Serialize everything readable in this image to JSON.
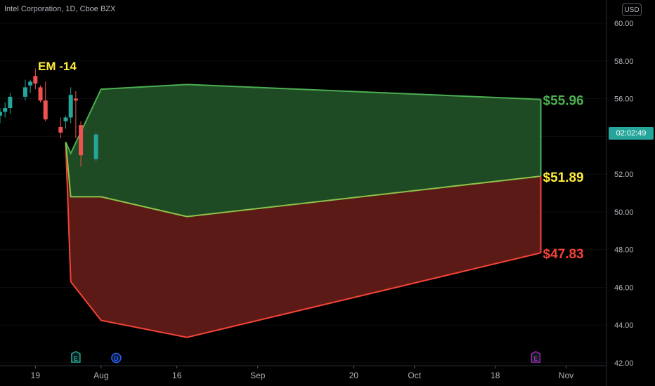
{
  "header": {
    "symbol": "Intel Corporation, 1D, Cboe BZX",
    "currency": "USD"
  },
  "countdown": "02:02:49",
  "annotation": "EM -14",
  "colors": {
    "upper": "#4caf50",
    "mid": "#8bc34a",
    "lower": "#f44336",
    "label_upper": "#4caf50",
    "label_mid": "#ffeb3b",
    "label_lower": "#f44336",
    "candle_up": "#26a69a",
    "candle_down": "#ef5350"
  },
  "event_markers": [
    {
      "letter": "E",
      "date": "2023-07-27",
      "color": "#26a69a"
    },
    {
      "letter": "D",
      "date": "2023-08-04",
      "color": "#2962ff"
    },
    {
      "letter": "E",
      "date": "2023-10-26",
      "color": "#9c27b0"
    }
  ],
  "chart_data": {
    "type": "area",
    "title": "",
    "xlabel": "",
    "ylabel": "",
    "x_ticks": [
      {
        "label": "19",
        "date": "2023-07-19"
      },
      {
        "label": "Aug",
        "date": "2023-08-01"
      },
      {
        "label": "16",
        "date": "2023-08-16"
      },
      {
        "label": "Sep",
        "date": "2023-09-01"
      },
      {
        "label": "20",
        "date": "2023-09-20"
      },
      {
        "label": "Oct",
        "date": "2023-10-02"
      },
      {
        "label": "18",
        "date": "2023-10-18"
      },
      {
        "label": "Nov",
        "date": "2023-11-01"
      }
    ],
    "y_ticks": [
      "60.00",
      "58.00",
      "56.00",
      "54.00",
      "52.00",
      "50.00",
      "48.00",
      "46.00",
      "44.00",
      "42.00"
    ],
    "ylim": [
      42,
      60
    ],
    "xlim": [
      "2023-07-12",
      "2023-11-09"
    ],
    "upper_band": {
      "x": [
        "2023-07-25",
        "2023-07-26",
        "2023-08-01",
        "2023-08-18",
        "2023-10-27"
      ],
      "y": [
        53.7,
        53.1,
        56.5,
        56.75,
        55.96
      ]
    },
    "mid_band": {
      "x": [
        "2023-07-25",
        "2023-07-26",
        "2023-08-01",
        "2023-08-18",
        "2023-10-27"
      ],
      "y": [
        53.7,
        50.8,
        50.8,
        49.75,
        51.89
      ]
    },
    "lower_band": {
      "x": [
        "2023-07-25",
        "2023-07-26",
        "2023-08-01",
        "2023-08-18",
        "2023-10-27"
      ],
      "y": [
        53.7,
        46.3,
        44.25,
        43.35,
        47.83
      ]
    },
    "band_labels": [
      "$55.96",
      "$51.89",
      "$47.83"
    ],
    "candles": [
      {
        "date": "2023-07-12",
        "o": 55.1,
        "h": 55.5,
        "l": 54.7,
        "c": 55.3
      },
      {
        "date": "2023-07-13",
        "o": 55.3,
        "h": 55.8,
        "l": 55.0,
        "c": 55.5
      },
      {
        "date": "2023-07-14",
        "o": 55.5,
        "h": 56.3,
        "l": 55.2,
        "c": 56.1
      },
      {
        "date": "2023-07-17",
        "o": 56.1,
        "h": 57.0,
        "l": 55.9,
        "c": 56.6
      },
      {
        "date": "2023-07-18",
        "o": 56.7,
        "h": 57.0,
        "l": 56.3,
        "c": 56.9
      },
      {
        "date": "2023-07-19",
        "o": 57.2,
        "h": 57.6,
        "l": 56.5,
        "c": 56.8
      },
      {
        "date": "2023-07-20",
        "o": 56.6,
        "h": 56.7,
        "l": 55.8,
        "c": 55.9
      },
      {
        "date": "2023-07-21",
        "o": 55.9,
        "h": 56.9,
        "l": 54.8,
        "c": 54.9
      },
      {
        "date": "2023-07-24",
        "o": 54.5,
        "h": 55.0,
        "l": 53.9,
        "c": 54.2
      },
      {
        "date": "2023-07-25",
        "o": 54.8,
        "h": 55.1,
        "l": 54.4,
        "c": 55.0
      },
      {
        "date": "2023-07-26",
        "o": 55.0,
        "h": 56.6,
        "l": 54.7,
        "c": 56.2
      },
      {
        "date": "2023-07-27",
        "o": 56.0,
        "h": 56.4,
        "l": 53.9,
        "c": 55.9
      },
      {
        "date": "2023-07-28",
        "o": 54.6,
        "h": 54.8,
        "l": 52.4,
        "c": 53.0
      },
      {
        "date": "2023-07-31",
        "o": 52.8,
        "h": 54.2,
        "l": 52.7,
        "c": 54.1
      }
    ]
  }
}
